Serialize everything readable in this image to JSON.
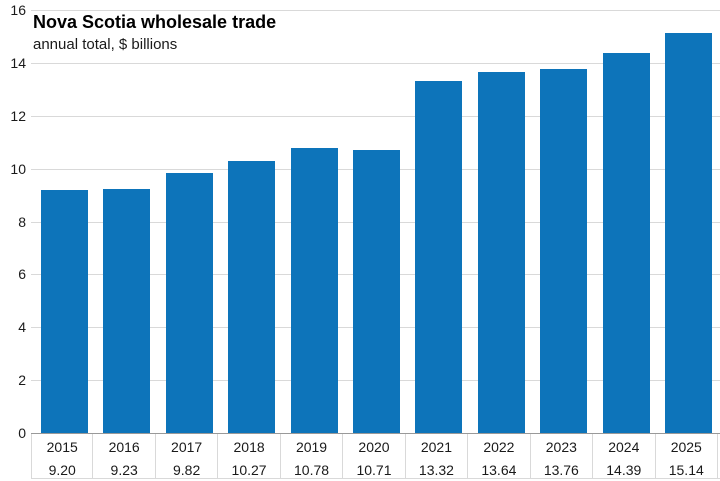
{
  "chart_data": {
    "type": "bar",
    "title": "Nova Scotia wholesale trade",
    "subtitle": "annual total, $ billions",
    "categories": [
      "2015",
      "2016",
      "2017",
      "2018",
      "2019",
      "2020",
      "2021",
      "2022",
      "2023",
      "2024",
      "2025"
    ],
    "values": [
      9.2,
      9.23,
      9.82,
      10.27,
      10.78,
      10.71,
      13.32,
      13.64,
      13.76,
      14.39,
      15.14
    ],
    "value_labels": [
      "9.20",
      "9.23",
      "9.82",
      "10.27",
      "10.78",
      "10.71",
      "13.32",
      "13.64",
      "13.76",
      "14.39",
      "15.14"
    ],
    "xlabel": "",
    "ylabel": "",
    "ylim": [
      0,
      16
    ],
    "yticks": [
      0,
      2,
      4,
      6,
      8,
      10,
      12,
      14,
      16
    ],
    "grid": true,
    "legend": "none",
    "bar_color": "#0d74ba",
    "gridline_color": "#d9d9d9",
    "axis_line_color": "#999999",
    "text_color": "#1a1a1a"
  }
}
